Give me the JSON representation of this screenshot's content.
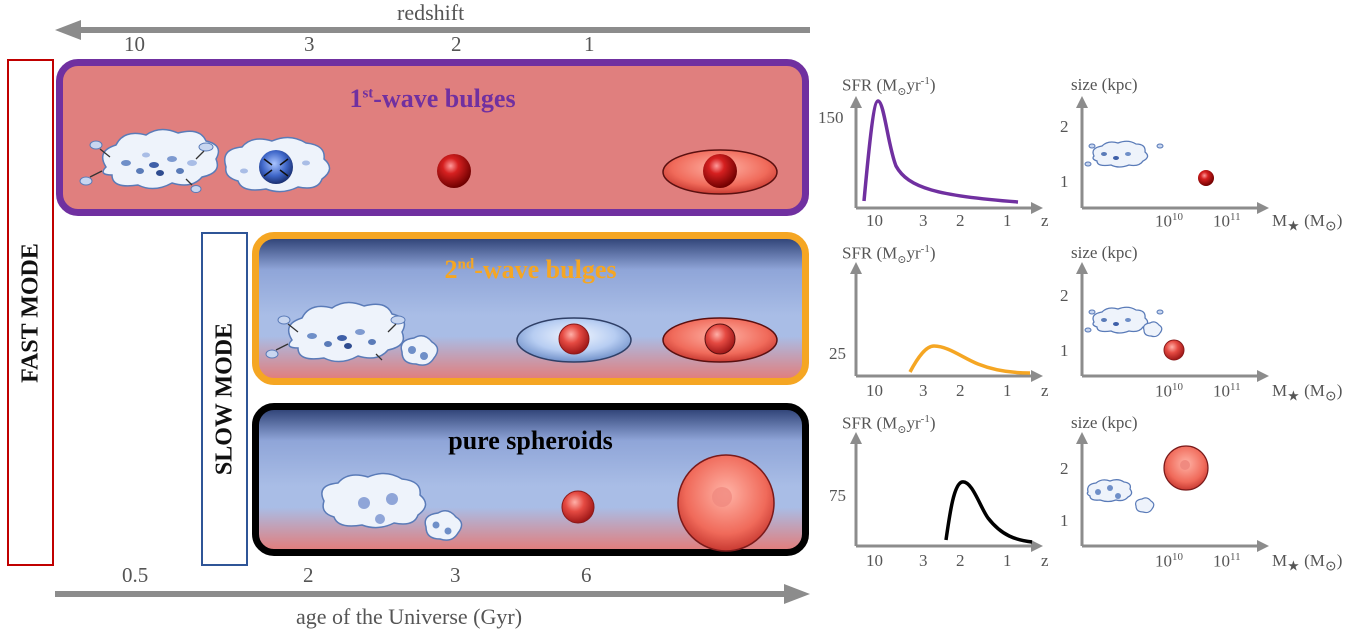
{
  "top_axis": {
    "label": "redshift",
    "ticks": [
      "10",
      "3",
      "2",
      "1"
    ]
  },
  "bottom_axis": {
    "label": "age of the Universe (Gyr)",
    "ticks": [
      "0.5",
      "2",
      "3",
      "6"
    ]
  },
  "modes": {
    "fast": "FAST MODE",
    "slow": "SLOW MODE"
  },
  "panels": [
    {
      "title_pre": "1",
      "title_sup": "st",
      "title_post": "-wave bulges",
      "border": "#7030A0",
      "title_color": "#7030A0"
    },
    {
      "title_pre": "2",
      "title_sup": "nd",
      "title_post": "-wave bulges",
      "border": "#F5A623",
      "title_color": "#F5A623"
    },
    {
      "title_pre": "pure spheroids",
      "title_sup": "",
      "title_post": "",
      "border": "#000000",
      "title_color": "#000000"
    }
  ],
  "sfr_plots": {
    "ylabel_pre": "SFR (M",
    "ylabel_sun": "⊙",
    "ylabel_mid": "yr",
    "ylabel_sup": "-1",
    "ylabel_post": ")",
    "x_ticks": [
      "10",
      "3",
      "2",
      "1"
    ],
    "x_label": "z",
    "rows": [
      {
        "y_tick": "150",
        "curve_color": "#7030A0"
      },
      {
        "y_tick": "25",
        "curve_color": "#F5A623"
      },
      {
        "y_tick": "75",
        "curve_color": "#000000"
      }
    ]
  },
  "size_plots": {
    "ylabel": "size (kpc)",
    "y_ticks": [
      "2",
      "1"
    ],
    "x_ticks": [
      {
        "base": "10",
        "exp": "10"
      },
      {
        "base": "10",
        "exp": "11"
      }
    ],
    "x_label_pre": "M",
    "x_label_star": "★",
    "x_label_mid": " (M",
    "x_label_sun": "⊙",
    "x_label_post": ")"
  },
  "colors": {
    "axis_gray": "#8c8c8c",
    "fast_box": "#C00000",
    "slow_box": "#2F5597",
    "red_fill": "#E06060",
    "blue_fill": "#A9BDE6"
  }
}
